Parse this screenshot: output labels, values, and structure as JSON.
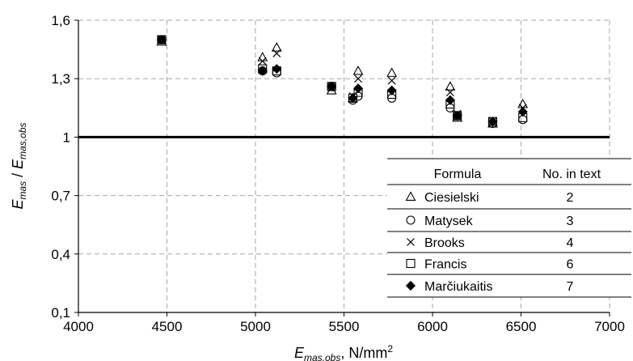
{
  "chart_data": {
    "type": "scatter",
    "xlim": [
      4000,
      7000
    ],
    "ylim": [
      0.1,
      1.6
    ],
    "x_ticks": [
      4000,
      4500,
      5000,
      5500,
      6000,
      6500,
      7000
    ],
    "y_ticks": [
      0.1,
      0.4,
      0.7,
      1,
      1.3,
      1.6
    ],
    "x_tick_labels": [
      "4000",
      "4500",
      "5000",
      "5500",
      "6000",
      "6500",
      "7000"
    ],
    "y_tick_labels": [
      "0,1",
      "0,4",
      "0,7",
      "1",
      "1,3",
      "1,6"
    ],
    "grid": true,
    "reference_line_y": 1,
    "xlabel": {
      "main": "E",
      "sub": "mas,obs",
      "rest": ", N/mm",
      "sup": "2"
    },
    "ylabel": {
      "main1": "E",
      "sub1": "mas",
      "mid": " / ",
      "main2": "E",
      "sub2": "mas,obs"
    },
    "legend": {
      "position": "bottom-right",
      "header": [
        "Formula",
        "No. in text"
      ]
    },
    "series": [
      {
        "name": "Ciesielski",
        "number": "2",
        "marker": "triangle",
        "points": [
          [
            4470,
            1.49
          ],
          [
            5040,
            1.41
          ],
          [
            5120,
            1.46
          ],
          [
            5430,
            1.24
          ],
          [
            5550,
            1.2
          ],
          [
            5580,
            1.34
          ],
          [
            5770,
            1.33
          ],
          [
            6100,
            1.26
          ],
          [
            6140,
            1.1
          ],
          [
            6340,
            1.07
          ],
          [
            6510,
            1.17
          ]
        ]
      },
      {
        "name": "Matysek",
        "number": "3",
        "marker": "circle",
        "points": [
          [
            4470,
            1.5
          ],
          [
            5040,
            1.34
          ],
          [
            5120,
            1.33
          ],
          [
            5430,
            1.26
          ],
          [
            5550,
            1.19
          ],
          [
            5580,
            1.21
          ],
          [
            5770,
            1.2
          ],
          [
            6100,
            1.15
          ],
          [
            6140,
            1.11
          ],
          [
            6340,
            1.07
          ],
          [
            6510,
            1.09
          ]
        ]
      },
      {
        "name": "Brooks",
        "number": "4",
        "marker": "cross",
        "points": [
          [
            4470,
            1.5
          ],
          [
            5040,
            1.39
          ],
          [
            5120,
            1.43
          ],
          [
            5430,
            1.25
          ],
          [
            5550,
            1.21
          ],
          [
            5580,
            1.3
          ],
          [
            5770,
            1.29
          ],
          [
            6100,
            1.23
          ],
          [
            6140,
            1.12
          ],
          [
            6340,
            1.08
          ],
          [
            6510,
            1.15
          ]
        ]
      },
      {
        "name": "Francis",
        "number": "6",
        "marker": "square",
        "points": [
          [
            4470,
            1.5
          ],
          [
            5040,
            1.35
          ],
          [
            5120,
            1.34
          ],
          [
            5430,
            1.26
          ],
          [
            5550,
            1.2
          ],
          [
            5580,
            1.23
          ],
          [
            5770,
            1.22
          ],
          [
            6100,
            1.17
          ],
          [
            6140,
            1.11
          ],
          [
            6340,
            1.08
          ],
          [
            6510,
            1.1
          ]
        ]
      },
      {
        "name": "Marčiukaitis",
        "number": "7",
        "marker": "diamond",
        "points": [
          [
            4470,
            1.5
          ],
          [
            5040,
            1.34
          ],
          [
            5120,
            1.35
          ],
          [
            5430,
            1.26
          ],
          [
            5550,
            1.2
          ],
          [
            5580,
            1.25
          ],
          [
            5770,
            1.24
          ],
          [
            6100,
            1.19
          ],
          [
            6140,
            1.11
          ],
          [
            6340,
            1.08
          ],
          [
            6510,
            1.13
          ]
        ]
      }
    ]
  }
}
